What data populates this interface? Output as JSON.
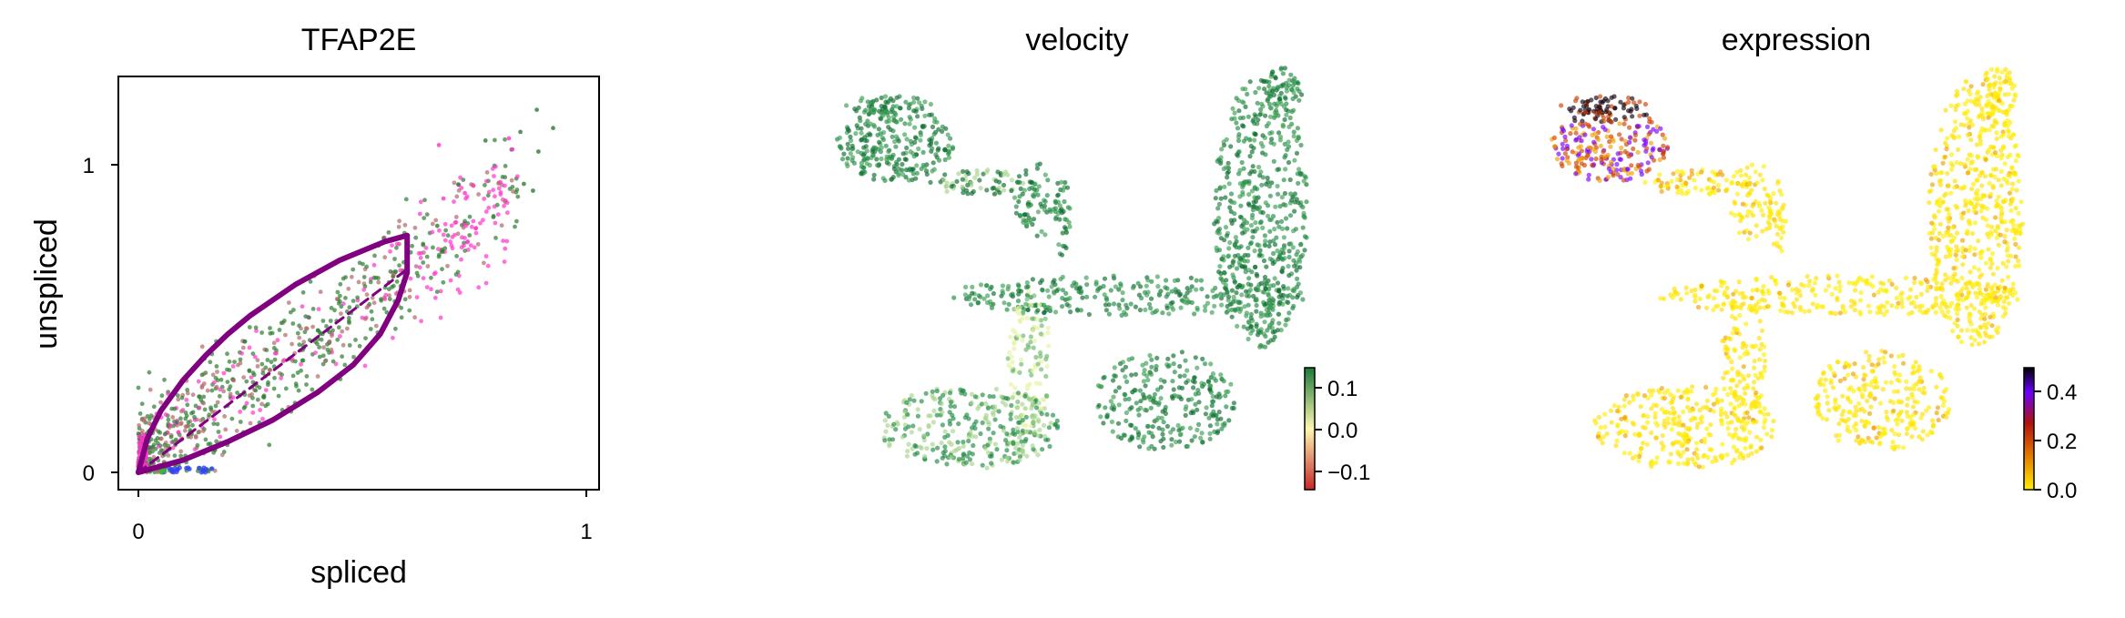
{
  "chart_data": [
    {
      "type": "scatter",
      "title": "TFAP2E",
      "xlabel": "spliced",
      "ylabel": "unspliced",
      "xlim": [
        -0.05,
        1.02
      ],
      "ylim": [
        -0.05,
        1.25
      ],
      "xticks": [
        "0",
        "1"
      ],
      "yticks": [
        "0",
        "1"
      ],
      "point_colors": [
        "#2e7d32",
        "#b06a6a",
        "#ff33cc",
        "#3344ee",
        "#33bb33"
      ],
      "model_fit": {
        "curve_color": "#800080",
        "upper_curve": [
          [
            0,
            0
          ],
          [
            0.02,
            0.11
          ],
          [
            0.05,
            0.2
          ],
          [
            0.1,
            0.3
          ],
          [
            0.15,
            0.38
          ],
          [
            0.2,
            0.45
          ],
          [
            0.25,
            0.51
          ],
          [
            0.3,
            0.56
          ],
          [
            0.35,
            0.61
          ],
          [
            0.4,
            0.65
          ],
          [
            0.45,
            0.69
          ],
          [
            0.5,
            0.72
          ],
          [
            0.55,
            0.75
          ],
          [
            0.6,
            0.77
          ]
        ],
        "lower_curve": [
          [
            0,
            0
          ],
          [
            0.1,
            0.04
          ],
          [
            0.2,
            0.1
          ],
          [
            0.3,
            0.17
          ],
          [
            0.4,
            0.26
          ],
          [
            0.48,
            0.35
          ],
          [
            0.54,
            0.45
          ],
          [
            0.58,
            0.56
          ],
          [
            0.6,
            0.65
          ],
          [
            0.6,
            0.77
          ]
        ],
        "steady_state_line": [
          [
            0,
            0
          ],
          [
            0.6,
            0.66
          ]
        ]
      }
    },
    {
      "type": "scatter",
      "title": "velocity",
      "colorbar": {
        "ticks": [
          "0.1",
          "0.0",
          "−0.1"
        ],
        "range": [
          -0.15,
          0.15
        ],
        "colors": [
          "#c62828",
          "#fff7b0",
          "#1b7a3a"
        ]
      }
    },
    {
      "type": "scatter",
      "title": "expression",
      "colorbar": {
        "ticks": [
          "0.4",
          "0.2",
          "0.0"
        ],
        "range": [
          0,
          0.5
        ],
        "colors": [
          "#ffee00",
          "#e07000",
          "#b01010",
          "#6a00ff",
          "#000000"
        ]
      }
    }
  ]
}
